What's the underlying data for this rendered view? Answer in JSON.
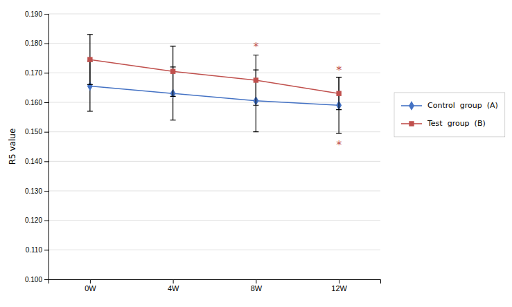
{
  "chart_data": {
    "type": "line",
    "ylabel": "R5 value",
    "categories": [
      "0W",
      "4W",
      "8W",
      "12W"
    ],
    "series": [
      {
        "name": "Control  group  (A)",
        "color": "#4472C4",
        "marker": "diamond",
        "line_style": "solid",
        "values": [
          0.1655,
          0.163,
          0.1605,
          0.159
        ],
        "errors": [
          0.0085,
          0.009,
          0.0105,
          0.0095
        ]
      },
      {
        "name": "Test  group  (B)",
        "color": "#C0504D",
        "marker": "square",
        "line_style": "solid",
        "values": [
          0.1745,
          0.1705,
          0.1675,
          0.163
        ],
        "errors": [
          0.0085,
          0.0085,
          0.0085,
          0.0055
        ]
      }
    ],
    "ylim": [
      0.1,
      0.19
    ],
    "yticks": [
      {
        "value": 0.1,
        "label": "0.100"
      },
      {
        "value": 0.11,
        "label": "0.110"
      },
      {
        "value": 0.12,
        "label": "0.120"
      },
      {
        "value": 0.13,
        "label": "0.130"
      },
      {
        "value": 0.14,
        "label": "0.140"
      },
      {
        "value": 0.15,
        "label": "0.150"
      },
      {
        "value": 0.16,
        "label": "0.160"
      },
      {
        "value": 0.17,
        "label": "0.170"
      },
      {
        "value": 0.18,
        "label": "0.180"
      },
      {
        "value": 0.19,
        "label": "0.190"
      }
    ],
    "annotations": [
      {
        "text": "*",
        "x": "8W",
        "y": 0.1775,
        "color": "#C0504D"
      },
      {
        "text": "*",
        "x": "12W",
        "y": 0.1695,
        "color": "#C0504D"
      },
      {
        "text": "*",
        "x": "12W",
        "y": 0.147,
        "color": "#C0504D"
      }
    ],
    "grid": true,
    "legend": "right"
  }
}
